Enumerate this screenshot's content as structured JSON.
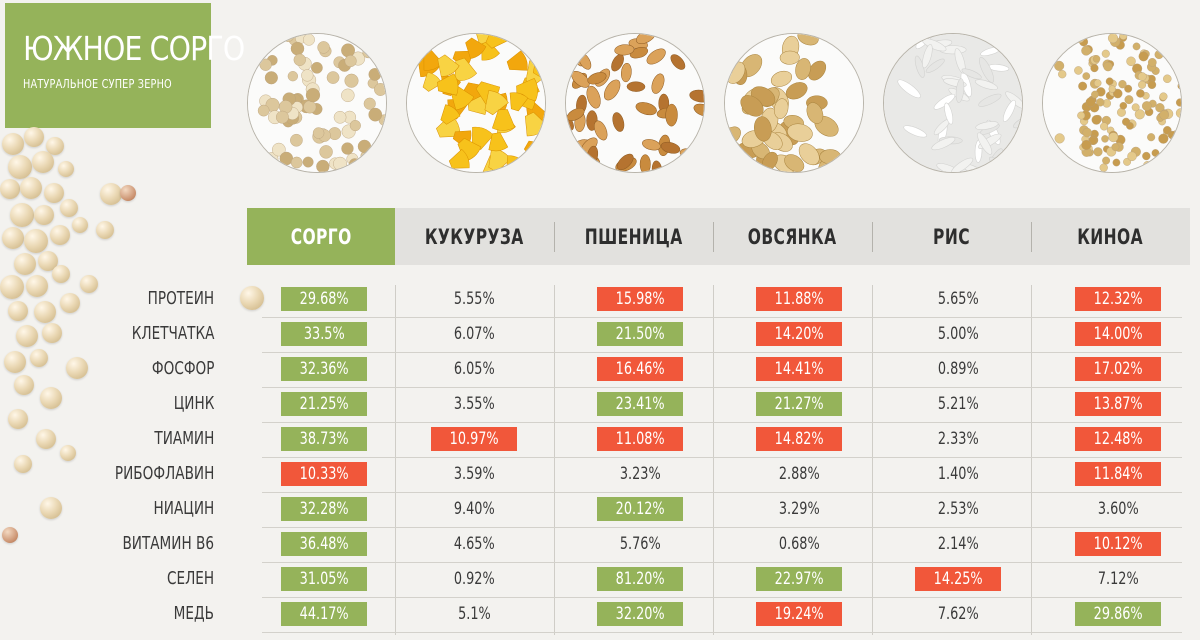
{
  "title": {
    "main": "ЮЖНОЕ СОРГО",
    "sub": "НАТУРАЛЬНОЕ СУПЕР ЗЕРНО"
  },
  "colors": {
    "green": "#95b35a",
    "red": "#f1573a",
    "header_gray": "#e2e1de"
  },
  "columns": [
    {
      "label": "СОРГО",
      "icon": "sorghum-grain-icon"
    },
    {
      "label": "КУКУРУЗА",
      "icon": "corn-kernel-icon"
    },
    {
      "label": "ПШЕНИЦА",
      "icon": "wheat-grain-icon"
    },
    {
      "label": "ОВСЯНКА",
      "icon": "oat-flakes-icon"
    },
    {
      "label": "РИС",
      "icon": "rice-grain-icon"
    },
    {
      "label": "КИНОА",
      "icon": "quinoa-seed-icon"
    }
  ],
  "rows": [
    {
      "label": "ПРОТЕИН",
      "values": [
        {
          "v": "29.68%",
          "h": "green"
        },
        {
          "v": "5.55%",
          "h": ""
        },
        {
          "v": "15.98%",
          "h": "red"
        },
        {
          "v": "11.88%",
          "h": "red"
        },
        {
          "v": "5.65%",
          "h": ""
        },
        {
          "v": "12.32%",
          "h": "red"
        }
      ]
    },
    {
      "label": "КЛЕТЧАТКА",
      "values": [
        {
          "v": "33.5%",
          "h": "green"
        },
        {
          "v": "6.07%",
          "h": ""
        },
        {
          "v": "21.50%",
          "h": "green"
        },
        {
          "v": "14.20%",
          "h": "red"
        },
        {
          "v": "5.00%",
          "h": ""
        },
        {
          "v": "14.00%",
          "h": "red"
        }
      ]
    },
    {
      "label": "ФОСФОР",
      "values": [
        {
          "v": "32.36%",
          "h": "green"
        },
        {
          "v": "6.05%",
          "h": ""
        },
        {
          "v": "16.46%",
          "h": "red"
        },
        {
          "v": "14.41%",
          "h": "red"
        },
        {
          "v": "0.89%",
          "h": ""
        },
        {
          "v": "17.02%",
          "h": "red"
        }
      ]
    },
    {
      "label": "ЦИНК",
      "values": [
        {
          "v": "21.25%",
          "h": "green"
        },
        {
          "v": "3.55%",
          "h": ""
        },
        {
          "v": "23.41%",
          "h": "green"
        },
        {
          "v": "21.27%",
          "h": "green"
        },
        {
          "v": "5.21%",
          "h": ""
        },
        {
          "v": "13.87%",
          "h": "red"
        }
      ]
    },
    {
      "label": "ТИАМИН",
      "values": [
        {
          "v": "38.73%",
          "h": "green"
        },
        {
          "v": "10.97%",
          "h": "red"
        },
        {
          "v": "11.08%",
          "h": "red"
        },
        {
          "v": "14.82%",
          "h": "red"
        },
        {
          "v": "2.33%",
          "h": ""
        },
        {
          "v": "12.48%",
          "h": "red"
        }
      ]
    },
    {
      "label": "РИБОФЛАВИН",
      "values": [
        {
          "v": "10.33%",
          "h": "red"
        },
        {
          "v": "3.59%",
          "h": ""
        },
        {
          "v": "3.23%",
          "h": ""
        },
        {
          "v": "2.88%",
          "h": ""
        },
        {
          "v": "1.40%",
          "h": ""
        },
        {
          "v": "11.84%",
          "h": "red"
        }
      ]
    },
    {
      "label": "НИАЦИН",
      "values": [
        {
          "v": "32.28%",
          "h": "green"
        },
        {
          "v": "9.40%",
          "h": ""
        },
        {
          "v": "20.12%",
          "h": "green"
        },
        {
          "v": "3.29%",
          "h": ""
        },
        {
          "v": "2.53%",
          "h": ""
        },
        {
          "v": "3.60%",
          "h": ""
        }
      ]
    },
    {
      "label": "ВИТАМИН В6",
      "values": [
        {
          "v": "36.48%",
          "h": "green"
        },
        {
          "v": "4.65%",
          "h": ""
        },
        {
          "v": "5.76%",
          "h": ""
        },
        {
          "v": "0.68%",
          "h": ""
        },
        {
          "v": "2.14%",
          "h": ""
        },
        {
          "v": "10.12%",
          "h": "red"
        }
      ]
    },
    {
      "label": "СЕЛЕН",
      "values": [
        {
          "v": "31.05%",
          "h": "green"
        },
        {
          "v": "0.92%",
          "h": ""
        },
        {
          "v": "81.20%",
          "h": "green"
        },
        {
          "v": "22.97%",
          "h": "green"
        },
        {
          "v": "14.25%",
          "h": "red"
        },
        {
          "v": "7.12%",
          "h": ""
        }
      ]
    },
    {
      "label": "МЕДЬ",
      "values": [
        {
          "v": "44.17%",
          "h": "green"
        },
        {
          "v": "5.1%",
          "h": ""
        },
        {
          "v": "32.20%",
          "h": "green"
        },
        {
          "v": "19.24%",
          "h": "red"
        },
        {
          "v": "7.62%",
          "h": ""
        },
        {
          "v": "29.86%",
          "h": "green"
        }
      ]
    }
  ]
}
